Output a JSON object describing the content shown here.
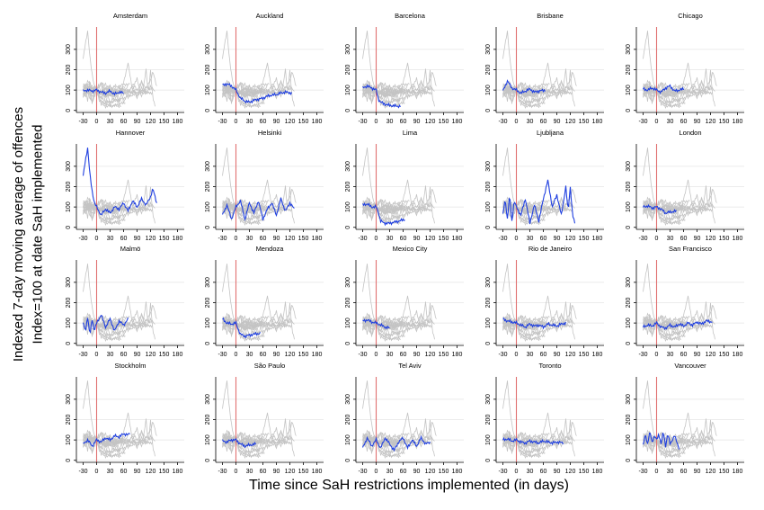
{
  "figure": {
    "ylabel_line1": "Indexed 7-day moving average of offences",
    "ylabel_line2": "Index=100 at date SaH implemented",
    "xlabel": "Time since SaH restrictions implemented (in days)"
  },
  "colors": {
    "focus": "#1f3fe0",
    "background": "#c4c4c4",
    "vline": "#e07070",
    "grid": "#e6e6e6",
    "axis": "#000000"
  },
  "chart_data": {
    "type": "line",
    "xlabel": "Time since SaH restrictions implemented (in days)",
    "ylabel": "Indexed 7-day moving average of offences / Index=100 at date SaH implemented",
    "xticks": [
      "-30",
      "0",
      "30",
      "60",
      "90",
      "120",
      "150",
      "180"
    ],
    "yticks": [
      "0",
      "100",
      "200",
      "300"
    ],
    "xlim": [
      -45,
      195
    ],
    "ylim": [
      -10,
      410
    ],
    "vline_x": 0,
    "grid": "horizontal",
    "panels": [
      {
        "name": "Amsterdam",
        "x_start": -30,
        "x_end": 60,
        "anchors": [
          [
            -30,
            95
          ],
          [
            -20,
            100
          ],
          [
            -10,
            95
          ],
          [
            0,
            100
          ],
          [
            10,
            90
          ],
          [
            20,
            85
          ],
          [
            30,
            95
          ],
          [
            40,
            80
          ],
          [
            50,
            90
          ],
          [
            60,
            85
          ]
        ]
      },
      {
        "name": "Auckland",
        "x_start": -30,
        "x_end": 125,
        "anchors": [
          [
            -30,
            125
          ],
          [
            -20,
            130
          ],
          [
            -10,
            120
          ],
          [
            0,
            100
          ],
          [
            10,
            60
          ],
          [
            20,
            45
          ],
          [
            30,
            40
          ],
          [
            40,
            50
          ],
          [
            50,
            55
          ],
          [
            60,
            60
          ],
          [
            70,
            70
          ],
          [
            80,
            75
          ],
          [
            90,
            78
          ],
          [
            100,
            85
          ],
          [
            110,
            90
          ],
          [
            125,
            85
          ]
        ]
      },
      {
        "name": "Barcelona",
        "x_start": -30,
        "x_end": 55,
        "anchors": [
          [
            -30,
            110
          ],
          [
            -20,
            120
          ],
          [
            -10,
            110
          ],
          [
            0,
            100
          ],
          [
            5,
            55
          ],
          [
            10,
            40
          ],
          [
            20,
            30
          ],
          [
            30,
            25
          ],
          [
            40,
            22
          ],
          [
            55,
            20
          ]
        ]
      },
      {
        "name": "Brisbane",
        "x_start": -30,
        "x_end": 65,
        "anchors": [
          [
            -30,
            95
          ],
          [
            -20,
            145
          ],
          [
            -10,
            110
          ],
          [
            0,
            100
          ],
          [
            10,
            85
          ],
          [
            20,
            95
          ],
          [
            30,
            105
          ],
          [
            40,
            90
          ],
          [
            50,
            95
          ],
          [
            65,
            100
          ]
        ]
      },
      {
        "name": "Chicago",
        "x_start": -30,
        "x_end": 60,
        "anchors": [
          [
            -30,
            105
          ],
          [
            -20,
            100
          ],
          [
            -10,
            110
          ],
          [
            0,
            100
          ],
          [
            10,
            90
          ],
          [
            20,
            110
          ],
          [
            30,
            120
          ],
          [
            40,
            95
          ],
          [
            50,
            100
          ],
          [
            60,
            105
          ]
        ]
      },
      {
        "name": "Hannover",
        "x_start": -30,
        "x_end": 135,
        "anchors": [
          [
            -30,
            250
          ],
          [
            -25,
            330
          ],
          [
            -20,
            390
          ],
          [
            -15,
            260
          ],
          [
            -10,
            180
          ],
          [
            -5,
            120
          ],
          [
            0,
            100
          ],
          [
            10,
            60
          ],
          [
            20,
            90
          ],
          [
            30,
            70
          ],
          [
            40,
            100
          ],
          [
            50,
            90
          ],
          [
            60,
            120
          ],
          [
            70,
            80
          ],
          [
            80,
            130
          ],
          [
            90,
            100
          ],
          [
            100,
            140
          ],
          [
            110,
            110
          ],
          [
            120,
            150
          ],
          [
            125,
            190
          ],
          [
            135,
            110
          ]
        ]
      },
      {
        "name": "Helsinki",
        "x_start": -30,
        "x_end": 130,
        "anchors": [
          [
            -30,
            60
          ],
          [
            -20,
            110
          ],
          [
            -10,
            40
          ],
          [
            0,
            100
          ],
          [
            10,
            130
          ],
          [
            20,
            40
          ],
          [
            30,
            120
          ],
          [
            40,
            70
          ],
          [
            50,
            130
          ],
          [
            60,
            40
          ],
          [
            70,
            90
          ],
          [
            80,
            120
          ],
          [
            90,
            60
          ],
          [
            100,
            140
          ],
          [
            110,
            80
          ],
          [
            120,
            120
          ],
          [
            130,
            90
          ]
        ]
      },
      {
        "name": "Lima",
        "x_start": -30,
        "x_end": 65,
        "anchors": [
          [
            -30,
            110
          ],
          [
            -20,
            115
          ],
          [
            -10,
            100
          ],
          [
            0,
            100
          ],
          [
            5,
            75
          ],
          [
            10,
            30
          ],
          [
            20,
            20
          ],
          [
            30,
            20
          ],
          [
            40,
            25
          ],
          [
            50,
            30
          ],
          [
            65,
            40
          ]
        ]
      },
      {
        "name": "Ljubljana",
        "x_start": -30,
        "x_end": 130,
        "anchors": [
          [
            -30,
            60
          ],
          [
            -25,
            140
          ],
          [
            -20,
            40
          ],
          [
            -15,
            160
          ],
          [
            -10,
            30
          ],
          [
            -5,
            130
          ],
          [
            0,
            100
          ],
          [
            10,
            60
          ],
          [
            20,
            140
          ],
          [
            30,
            20
          ],
          [
            40,
            110
          ],
          [
            50,
            30
          ],
          [
            60,
            140
          ],
          [
            70,
            230
          ],
          [
            80,
            100
          ],
          [
            90,
            160
          ],
          [
            100,
            60
          ],
          [
            110,
            200
          ],
          [
            115,
            80
          ],
          [
            120,
            200
          ],
          [
            125,
            60
          ],
          [
            130,
            20
          ]
        ]
      },
      {
        "name": "London",
        "x_start": -30,
        "x_end": 45,
        "anchors": [
          [
            -30,
            100
          ],
          [
            -20,
            105
          ],
          [
            -10,
            95
          ],
          [
            0,
            100
          ],
          [
            10,
            90
          ],
          [
            20,
            70
          ],
          [
            30,
            75
          ],
          [
            45,
            80
          ]
        ]
      },
      {
        "name": "Malmö",
        "x_start": -30,
        "x_end": 70,
        "anchors": [
          [
            -30,
            100
          ],
          [
            -25,
            60
          ],
          [
            -20,
            130
          ],
          [
            -15,
            40
          ],
          [
            -10,
            120
          ],
          [
            -5,
            60
          ],
          [
            0,
            100
          ],
          [
            10,
            140
          ],
          [
            20,
            80
          ],
          [
            30,
            120
          ],
          [
            40,
            60
          ],
          [
            50,
            110
          ],
          [
            60,
            90
          ],
          [
            70,
            120
          ]
        ]
      },
      {
        "name": "Mendoza",
        "x_start": -30,
        "x_end": 55,
        "anchors": [
          [
            -30,
            120
          ],
          [
            -20,
            100
          ],
          [
            -10,
            95
          ],
          [
            0,
            100
          ],
          [
            5,
            70
          ],
          [
            10,
            45
          ],
          [
            20,
            35
          ],
          [
            30,
            40
          ],
          [
            40,
            45
          ],
          [
            55,
            50
          ]
        ]
      },
      {
        "name": "Mexico City",
        "x_start": -30,
        "x_end": 30,
        "anchors": [
          [
            -30,
            110
          ],
          [
            -20,
            115
          ],
          [
            -10,
            105
          ],
          [
            0,
            100
          ],
          [
            10,
            90
          ],
          [
            20,
            80
          ],
          [
            30,
            75
          ]
        ]
      },
      {
        "name": "Rio de Janeiro",
        "x_start": -30,
        "x_end": 110,
        "anchors": [
          [
            -30,
            120
          ],
          [
            -20,
            110
          ],
          [
            -10,
            105
          ],
          [
            0,
            100
          ],
          [
            10,
            90
          ],
          [
            20,
            80
          ],
          [
            30,
            95
          ],
          [
            40,
            85
          ],
          [
            50,
            90
          ],
          [
            60,
            80
          ],
          [
            70,
            95
          ],
          [
            80,
            90
          ],
          [
            90,
            85
          ],
          [
            100,
            95
          ],
          [
            110,
            100
          ]
        ]
      },
      {
        "name": "San Francisco",
        "x_start": -30,
        "x_end": 125,
        "anchors": [
          [
            -30,
            80
          ],
          [
            -20,
            90
          ],
          [
            -10,
            85
          ],
          [
            0,
            100
          ],
          [
            10,
            80
          ],
          [
            20,
            75
          ],
          [
            30,
            90
          ],
          [
            40,
            80
          ],
          [
            50,
            95
          ],
          [
            60,
            85
          ],
          [
            70,
            100
          ],
          [
            80,
            90
          ],
          [
            90,
            105
          ],
          [
            100,
            95
          ],
          [
            110,
            110
          ],
          [
            125,
            105
          ]
        ]
      },
      {
        "name": "Stockholm",
        "x_start": -30,
        "x_end": 75,
        "anchors": [
          [
            -30,
            80
          ],
          [
            -20,
            100
          ],
          [
            -10,
            70
          ],
          [
            0,
            100
          ],
          [
            10,
            90
          ],
          [
            20,
            110
          ],
          [
            30,
            100
          ],
          [
            40,
            120
          ],
          [
            50,
            115
          ],
          [
            60,
            130
          ],
          [
            70,
            125
          ],
          [
            75,
            135
          ]
        ]
      },
      {
        "name": "São Paulo",
        "x_start": -30,
        "x_end": 45,
        "anchors": [
          [
            -30,
            95
          ],
          [
            -20,
            90
          ],
          [
            -10,
            100
          ],
          [
            0,
            100
          ],
          [
            10,
            80
          ],
          [
            20,
            70
          ],
          [
            30,
            75
          ],
          [
            45,
            80
          ]
        ]
      },
      {
        "name": "Tel Aviv",
        "x_start": -30,
        "x_end": 120,
        "anchors": [
          [
            -30,
            60
          ],
          [
            -20,
            110
          ],
          [
            -10,
            70
          ],
          [
            0,
            100
          ],
          [
            10,
            60
          ],
          [
            20,
            110
          ],
          [
            30,
            80
          ],
          [
            40,
            50
          ],
          [
            50,
            90
          ],
          [
            60,
            110
          ],
          [
            70,
            60
          ],
          [
            80,
            100
          ],
          [
            90,
            70
          ],
          [
            100,
            110
          ],
          [
            110,
            80
          ],
          [
            120,
            90
          ]
        ]
      },
      {
        "name": "Toronto",
        "x_start": -30,
        "x_end": 105,
        "anchors": [
          [
            -30,
            100
          ],
          [
            -20,
            105
          ],
          [
            -10,
            95
          ],
          [
            0,
            100
          ],
          [
            10,
            90
          ],
          [
            20,
            85
          ],
          [
            30,
            95
          ],
          [
            40,
            90
          ],
          [
            50,
            85
          ],
          [
            60,
            95
          ],
          [
            70,
            90
          ],
          [
            80,
            85
          ],
          [
            90,
            90
          ],
          [
            105,
            85
          ]
        ]
      },
      {
        "name": "Vancouver",
        "x_start": -30,
        "x_end": 50,
        "anchors": [
          [
            -30,
            70
          ],
          [
            -25,
            130
          ],
          [
            -20,
            80
          ],
          [
            -15,
            140
          ],
          [
            -10,
            90
          ],
          [
            -5,
            120
          ],
          [
            0,
            100
          ],
          [
            5,
            130
          ],
          [
            10,
            80
          ],
          [
            15,
            140
          ],
          [
            20,
            70
          ],
          [
            25,
            130
          ],
          [
            30,
            80
          ],
          [
            40,
            120
          ],
          [
            50,
            60
          ]
        ]
      }
    ]
  }
}
